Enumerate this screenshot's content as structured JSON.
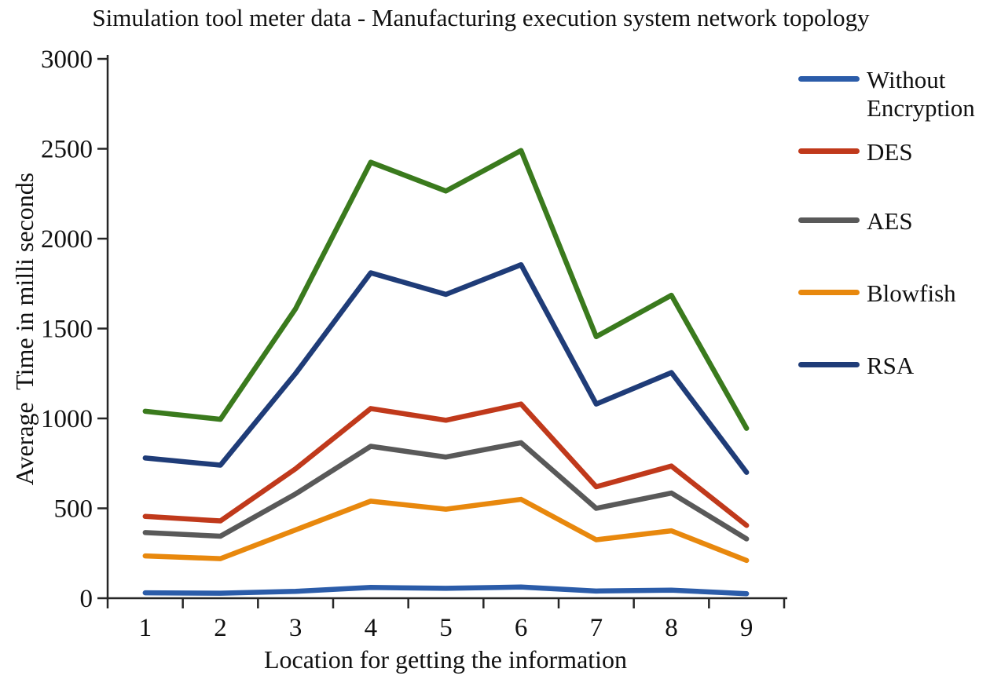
{
  "figure": {
    "title": "Simulation tool meter data - Manufacturing execution system network topology",
    "x_axis_label": "Location for getting the information",
    "y_axis_label": "Average  Time in milli seconds"
  },
  "colors": {
    "axis": "#262626",
    "text": "#111111",
    "background": "#ffffff",
    "without_encryption": "#2B5CA9",
    "des": "#C0391B",
    "aes": "#595959",
    "blowfish": "#E8880D",
    "rsa": "#1F3C78",
    "unlabeled_green": "#3A7A1D"
  },
  "legend": [
    {
      "label": "Without Encryption",
      "color": "#2B5CA9"
    },
    {
      "label": "DES",
      "color": "#C0391B"
    },
    {
      "label": "AES",
      "color": "#595959"
    },
    {
      "label": "Blowfish",
      "color": "#E8880D"
    },
    {
      "label": "RSA",
      "color": "#1F3C78"
    }
  ],
  "chart_data": {
    "type": "line",
    "title": "Simulation tool meter data - Manufacturing execution system network topology",
    "xlabel": "Location for getting the information",
    "ylabel": "Average  Time in milli seconds",
    "categories": [
      "1",
      "2",
      "3",
      "4",
      "5",
      "6",
      "7",
      "8",
      "9"
    ],
    "ylim": [
      0,
      3000
    ],
    "yticks": [
      0,
      500,
      1000,
      1500,
      2000,
      2500,
      3000
    ],
    "grid": false,
    "legend_position": "right",
    "series": [
      {
        "name": "Without Encryption",
        "color": "#2B5CA9",
        "values": [
          30,
          28,
          38,
          60,
          55,
          62,
          40,
          45,
          25
        ]
      },
      {
        "name": "DES",
        "color": "#C0391B",
        "values": [
          455,
          430,
          720,
          1055,
          990,
          1080,
          620,
          735,
          405
        ]
      },
      {
        "name": "AES",
        "color": "#595959",
        "values": [
          365,
          345,
          580,
          845,
          785,
          865,
          500,
          585,
          330
        ]
      },
      {
        "name": "Blowfish",
        "color": "#E8880D",
        "values": [
          235,
          220,
          380,
          540,
          495,
          550,
          325,
          375,
          210
        ]
      },
      {
        "name": "RSA",
        "color": "#1F3C78",
        "values": [
          780,
          740,
          1250,
          1810,
          1690,
          1855,
          1080,
          1255,
          700
        ]
      },
      {
        "name": "",
        "color": "#3A7A1D",
        "values": [
          1040,
          995,
          1610,
          2425,
          2265,
          2490,
          1455,
          1685,
          945
        ]
      }
    ]
  }
}
